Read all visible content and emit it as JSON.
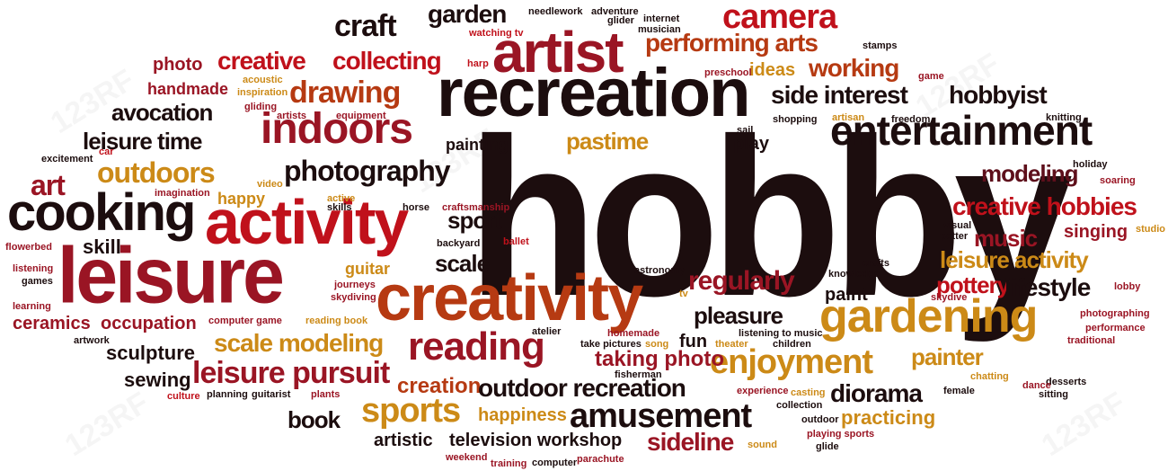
{
  "palette": {
    "black": "#1c0d0e",
    "maroon": "#5e0f1b",
    "crimson": "#9a1524",
    "red": "#c0111b",
    "rust": "#b63a12",
    "gold": "#cc8a17",
    "olive": "#9a6a10"
  },
  "watermark": {
    "text": "123RF"
  },
  "words": [
    {
      "text": "hobby",
      "color": "black"
    },
    {
      "text": "recreation",
      "color": "black"
    },
    {
      "text": "leisure",
      "color": "crimson"
    },
    {
      "text": "creativity",
      "color": "rust"
    },
    {
      "text": "activity",
      "color": "red"
    },
    {
      "text": "artist",
      "color": "crimson"
    },
    {
      "text": "cooking",
      "color": "black"
    },
    {
      "text": "gardening",
      "color": "gold"
    },
    {
      "text": "entertainment",
      "color": "black"
    },
    {
      "text": "indoors",
      "color": "crimson"
    },
    {
      "text": "camera",
      "color": "red"
    },
    {
      "text": "craft",
      "color": "black"
    },
    {
      "text": "garden",
      "color": "black"
    },
    {
      "text": "performing arts",
      "color": "rust"
    },
    {
      "text": "collecting",
      "color": "red"
    },
    {
      "text": "creative",
      "color": "red"
    },
    {
      "text": "photo",
      "color": "crimson"
    },
    {
      "text": "drawing",
      "color": "rust"
    },
    {
      "text": "working",
      "color": "rust"
    },
    {
      "text": "ideas",
      "color": "gold"
    },
    {
      "text": "side interest",
      "color": "black"
    },
    {
      "text": "hobbyist",
      "color": "black"
    },
    {
      "text": "handmade",
      "color": "crimson"
    },
    {
      "text": "avocation",
      "color": "black"
    },
    {
      "text": "leisure time",
      "color": "black"
    },
    {
      "text": "pastime",
      "color": "gold"
    },
    {
      "text": "painting",
      "color": "black"
    },
    {
      "text": "play",
      "color": "black"
    },
    {
      "text": "photography",
      "color": "black"
    },
    {
      "text": "outdoors",
      "color": "gold"
    },
    {
      "text": "art",
      "color": "crimson"
    },
    {
      "text": "modeling",
      "color": "maroon"
    },
    {
      "text": "creative hobbies",
      "color": "red"
    },
    {
      "text": "music",
      "color": "crimson"
    },
    {
      "text": "singing",
      "color": "crimson"
    },
    {
      "text": "happy",
      "color": "gold"
    },
    {
      "text": "sport",
      "color": "black"
    },
    {
      "text": "skill",
      "color": "black"
    },
    {
      "text": "scale",
      "color": "black"
    },
    {
      "text": "guitar",
      "color": "gold"
    },
    {
      "text": "leisure activity",
      "color": "gold"
    },
    {
      "text": "regularly",
      "color": "crimson"
    },
    {
      "text": "pottery",
      "color": "red"
    },
    {
      "text": "lifestyle",
      "color": "black"
    },
    {
      "text": "paint",
      "color": "black"
    },
    {
      "text": "pleasure",
      "color": "black"
    },
    {
      "text": "ceramics",
      "color": "crimson"
    },
    {
      "text": "occupation",
      "color": "crimson"
    },
    {
      "text": "scale modeling",
      "color": "gold"
    },
    {
      "text": "reading",
      "color": "crimson"
    },
    {
      "text": "sculpture",
      "color": "black"
    },
    {
      "text": "fun",
      "color": "black"
    },
    {
      "text": "enjoyment",
      "color": "gold"
    },
    {
      "text": "painter",
      "color": "gold"
    },
    {
      "text": "taking photo",
      "color": "crimson"
    },
    {
      "text": "leisure pursuit",
      "color": "crimson"
    },
    {
      "text": "sewing",
      "color": "black"
    },
    {
      "text": "creation",
      "color": "rust"
    },
    {
      "text": "outdoor recreation",
      "color": "black"
    },
    {
      "text": "diorama",
      "color": "black"
    },
    {
      "text": "book",
      "color": "black"
    },
    {
      "text": "sports",
      "color": "gold"
    },
    {
      "text": "amusement",
      "color": "black"
    },
    {
      "text": "happiness",
      "color": "gold"
    },
    {
      "text": "practicing",
      "color": "gold"
    },
    {
      "text": "artistic",
      "color": "black"
    },
    {
      "text": "television workshop",
      "color": "black"
    },
    {
      "text": "sideline",
      "color": "crimson"
    },
    {
      "text": "needlework",
      "color": "black"
    },
    {
      "text": "adventure",
      "color": "black"
    },
    {
      "text": "glider",
      "color": "black"
    },
    {
      "text": "internet",
      "color": "black"
    },
    {
      "text": "musician",
      "color": "black"
    },
    {
      "text": "watching tv",
      "color": "red"
    },
    {
      "text": "stamps",
      "color": "black"
    },
    {
      "text": "harp",
      "color": "red"
    },
    {
      "text": "preschool",
      "color": "crimson"
    },
    {
      "text": "game",
      "color": "crimson"
    },
    {
      "text": "acoustic",
      "color": "gold"
    },
    {
      "text": "inspiration",
      "color": "gold"
    },
    {
      "text": "gliding",
      "color": "crimson"
    },
    {
      "text": "artists",
      "color": "crimson"
    },
    {
      "text": "equipment",
      "color": "crimson"
    },
    {
      "text": "shopping",
      "color": "black"
    },
    {
      "text": "artisan",
      "color": "gold"
    },
    {
      "text": "freedom",
      "color": "black"
    },
    {
      "text": "knitting",
      "color": "black"
    },
    {
      "text": "car",
      "color": "red"
    },
    {
      "text": "sail",
      "color": "black"
    },
    {
      "text": "excitement",
      "color": "black"
    },
    {
      "text": "holiday",
      "color": "black"
    },
    {
      "text": "soaring",
      "color": "crimson"
    },
    {
      "text": "imagination",
      "color": "crimson"
    },
    {
      "text": "video",
      "color": "gold"
    },
    {
      "text": "active",
      "color": "gold"
    },
    {
      "text": "skills",
      "color": "black"
    },
    {
      "text": "horse",
      "color": "black"
    },
    {
      "text": "craftsmanship",
      "color": "crimson"
    },
    {
      "text": "visual",
      "color": "black"
    },
    {
      "text": "potter",
      "color": "black"
    },
    {
      "text": "studio",
      "color": "gold"
    },
    {
      "text": "flowerbed",
      "color": "crimson"
    },
    {
      "text": "backyard",
      "color": "black"
    },
    {
      "text": "ballet",
      "color": "red"
    },
    {
      "text": "listening",
      "color": "crimson"
    },
    {
      "text": "games",
      "color": "black"
    },
    {
      "text": "journeys",
      "color": "crimson"
    },
    {
      "text": "skydiving",
      "color": "crimson"
    },
    {
      "text": "astronomy",
      "color": "black"
    },
    {
      "text": "crafts",
      "color": "black"
    },
    {
      "text": "knowledge",
      "color": "black"
    },
    {
      "text": "skydive",
      "color": "crimson"
    },
    {
      "text": "lobby",
      "color": "crimson"
    },
    {
      "text": "learning",
      "color": "crimson"
    },
    {
      "text": "tv",
      "color": "gold"
    },
    {
      "text": "photographing",
      "color": "crimson"
    },
    {
      "text": "computer game",
      "color": "crimson"
    },
    {
      "text": "reading book",
      "color": "gold"
    },
    {
      "text": "atelier",
      "color": "black"
    },
    {
      "text": "homemade",
      "color": "crimson"
    },
    {
      "text": "listening to music",
      "color": "black"
    },
    {
      "text": "performance",
      "color": "crimson"
    },
    {
      "text": "artwork",
      "color": "black"
    },
    {
      "text": "take pictures",
      "color": "black"
    },
    {
      "text": "song",
      "color": "gold"
    },
    {
      "text": "theater",
      "color": "gold"
    },
    {
      "text": "children",
      "color": "black"
    },
    {
      "text": "traditional",
      "color": "crimson"
    },
    {
      "text": "fisherman",
      "color": "black"
    },
    {
      "text": "desserts",
      "color": "black"
    },
    {
      "text": "sitting",
      "color": "black"
    },
    {
      "text": "chatting",
      "color": "gold"
    },
    {
      "text": "experience",
      "color": "crimson"
    },
    {
      "text": "casting",
      "color": "gold"
    },
    {
      "text": "female",
      "color": "black"
    },
    {
      "text": "dance",
      "color": "crimson"
    },
    {
      "text": "culture",
      "color": "red"
    },
    {
      "text": "planning",
      "color": "black"
    },
    {
      "text": "guitarist",
      "color": "black"
    },
    {
      "text": "plants",
      "color": "crimson"
    },
    {
      "text": "collection",
      "color": "black"
    },
    {
      "text": "outdoor",
      "color": "black"
    },
    {
      "text": "playing sports",
      "color": "crimson"
    },
    {
      "text": "sound",
      "color": "gold"
    },
    {
      "text": "glide",
      "color": "black"
    },
    {
      "text": "weekend",
      "color": "crimson"
    },
    {
      "text": "training",
      "color": "crimson"
    },
    {
      "text": "computer",
      "color": "black"
    },
    {
      "text": "parachute",
      "color": "crimson"
    }
  ]
}
